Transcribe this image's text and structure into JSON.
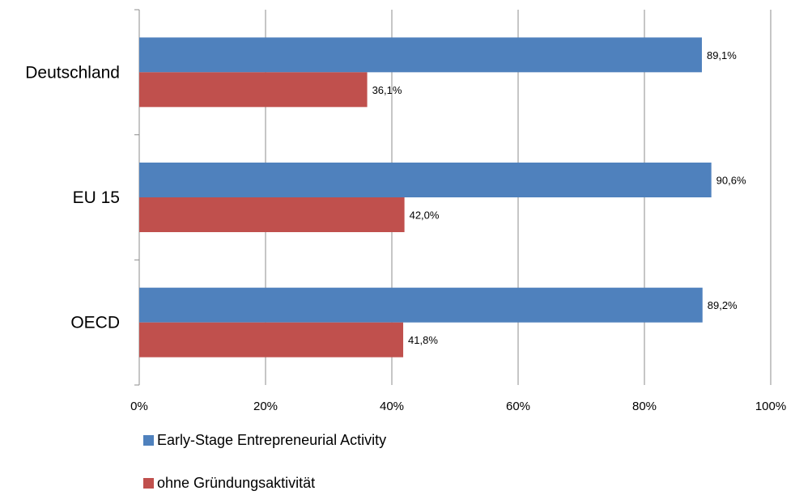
{
  "chart_data": {
    "type": "bar",
    "orientation": "horizontal",
    "categories": [
      "Deutschland",
      "EU 15",
      "OECD"
    ],
    "series": [
      {
        "name": "Early-Stage Entrepreneurial Activity",
        "values": [
          89.1,
          90.6,
          89.2
        ],
        "labels": [
          "89,1%",
          "90,6%",
          "89,2%"
        ],
        "color": "#4f81bd"
      },
      {
        "name": "ohne Gründungsaktivität",
        "values": [
          36.1,
          42.0,
          41.8
        ],
        "labels": [
          "36,1%",
          "42,0%",
          "41,8%"
        ],
        "color": "#c0504d"
      }
    ],
    "xlim": [
      0,
      100
    ],
    "xticks": [
      0,
      20,
      40,
      60,
      80,
      100
    ],
    "xtick_labels": [
      "0%",
      "20%",
      "40%",
      "60%",
      "80%",
      "100%"
    ],
    "grid": true,
    "legend_position": "bottom"
  }
}
